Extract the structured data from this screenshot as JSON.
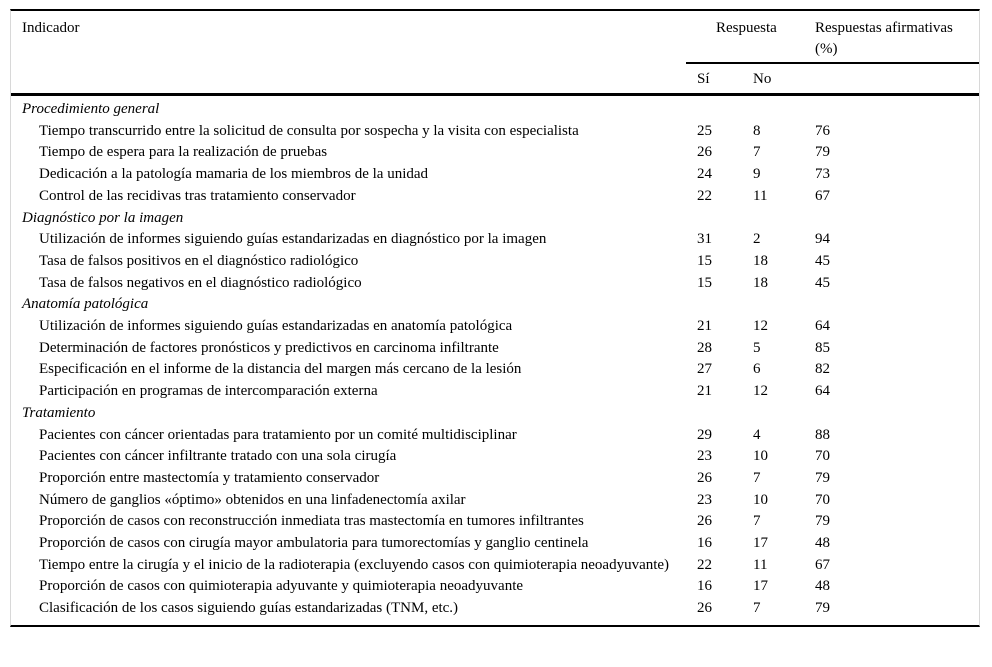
{
  "colors": {
    "text": "#000000",
    "rule": "#000000",
    "frame_border": "#d8d8d8",
    "background": "#ffffff"
  },
  "header": {
    "indicator": "Indicador",
    "response_group": "Respuesta",
    "yes": "Sí",
    "no": "No",
    "affirmative_pct": "Respuestas afirmativas (%)"
  },
  "sections": [
    {
      "title": "Procedimiento general",
      "rows": [
        {
          "indicator": "Tiempo transcurrido entre la solicitud de consulta por sospecha y la visita con especialista",
          "si": "25",
          "no": "8",
          "pct": "76"
        },
        {
          "indicator": "Tiempo de espera para la realización de pruebas",
          "si": "26",
          "no": "7",
          "pct": "79"
        },
        {
          "indicator": "Dedicación a la patología mamaria de los miembros de la unidad",
          "si": "24",
          "no": "9",
          "pct": "73"
        },
        {
          "indicator": "Control de las recidivas tras tratamiento conservador",
          "si": "22",
          "no": "11",
          "pct": "67"
        }
      ]
    },
    {
      "title": "Diagnóstico por la imagen",
      "rows": [
        {
          "indicator": "Utilización de informes siguiendo guías estandarizadas en diagnóstico por la imagen",
          "si": "31",
          "no": "2",
          "pct": "94"
        },
        {
          "indicator": "Tasa de falsos positivos en el diagnóstico radiológico",
          "si": "15",
          "no": "18",
          "pct": "45"
        },
        {
          "indicator": "Tasa de falsos negativos en el diagnóstico radiológico",
          "si": "15",
          "no": "18",
          "pct": "45"
        }
      ]
    },
    {
      "title": "Anatomía patológica",
      "rows": [
        {
          "indicator": "Utilización de informes siguiendo guías estandarizadas en anatomía patológica",
          "si": "21",
          "no": "12",
          "pct": "64"
        },
        {
          "indicator": "Determinación de factores pronósticos y predictivos en carcinoma infiltrante",
          "si": "28",
          "no": "5",
          "pct": "85"
        },
        {
          "indicator": "Especificación en el informe de la distancia del margen más cercano de la lesión",
          "si": "27",
          "no": "6",
          "pct": "82"
        },
        {
          "indicator": "Participación en programas de intercomparación externa",
          "si": "21",
          "no": "12",
          "pct": "64"
        }
      ]
    },
    {
      "title": "Tratamiento",
      "rows": [
        {
          "indicator": "Pacientes con cáncer orientadas para tratamiento por un comité multidisciplinar",
          "si": "29",
          "no": "4",
          "pct": "88"
        },
        {
          "indicator": "Pacientes con cáncer infiltrante tratado con una sola cirugía",
          "si": "23",
          "no": "10",
          "pct": "70"
        },
        {
          "indicator": "Proporción entre mastectomía y tratamiento conservador",
          "si": "26",
          "no": "7",
          "pct": "79"
        },
        {
          "indicator": "Número de ganglios «óptimo» obtenidos en una linfadenectomía axilar",
          "si": "23",
          "no": "10",
          "pct": "70"
        },
        {
          "indicator": "Proporción de casos con reconstrucción inmediata tras mastectomía en tumores infiltrantes",
          "si": "26",
          "no": "7",
          "pct": "79"
        },
        {
          "indicator": "Proporción de casos con cirugía mayor ambulatoria para tumorectomías y ganglio centinela",
          "si": "16",
          "no": "17",
          "pct": "48"
        },
        {
          "indicator": "Tiempo entre la cirugía y el inicio de la radioterapia (excluyendo casos con quimioterapia neoadyuvante)",
          "si": "22",
          "no": "11",
          "pct": "67"
        },
        {
          "indicator": "Proporción de casos con quimioterapia adyuvante y quimioterapia neoadyuvante",
          "si": "16",
          "no": "17",
          "pct": "48"
        },
        {
          "indicator": "Clasificación de los casos siguiendo guías estandarizadas (TNM, etc.)",
          "si": "26",
          "no": "7",
          "pct": "79"
        }
      ]
    }
  ]
}
